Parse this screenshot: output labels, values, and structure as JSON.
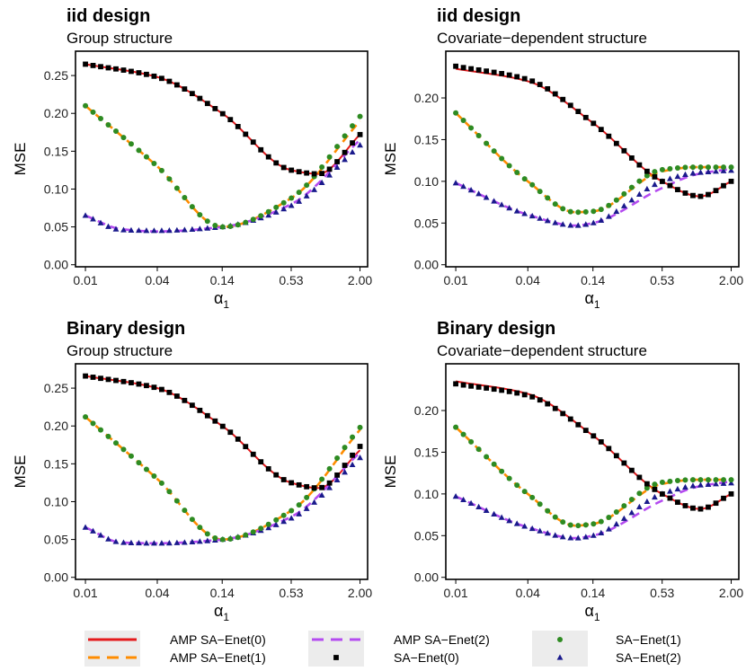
{
  "colors": {
    "amp0": "#e41a1c",
    "amp1": "#ff8c00",
    "amp2": "#b44bf0",
    "sa0": "#000000",
    "sa1": "#2e8b22",
    "sa2": "#1a1a8c"
  },
  "legend": {
    "entries": [
      {
        "key": "amp0",
        "label": "AMP SA−Enet(0)",
        "kind": "solid-line"
      },
      {
        "key": "amp1",
        "label": "AMP SA−Enet(1)",
        "kind": "dashed-line"
      },
      {
        "key": "amp2",
        "label": "AMP SA−Enet(2)",
        "kind": "dashed-line"
      },
      {
        "key": "sa0",
        "label": "SA−Enet(0)",
        "kind": "square"
      },
      {
        "key": "sa1",
        "label": "SA−Enet(1)",
        "kind": "circle"
      },
      {
        "key": "sa2",
        "label": "SA−Enet(2)",
        "kind": "triangle"
      }
    ]
  },
  "chart_data": [
    {
      "type": "line",
      "title": "iid design",
      "subtitle": "Group structure",
      "xlabel": "α",
      "xlabel_sub": "1",
      "ylabel": "MSE",
      "x_scale": "log",
      "xlim": [
        0.01,
        2.0
      ],
      "ylim": [
        0,
        0.27
      ],
      "x_ticks": [
        0.01,
        0.04,
        0.14,
        0.53,
        2.0
      ],
      "x_tick_labels": [
        "0.01",
        "0.04",
        "0.14",
        "0.53",
        "2.00"
      ],
      "y_ticks": [
        0,
        0.05,
        0.1,
        0.15,
        0.2,
        0.25
      ],
      "y_tick_labels": [
        "0.00",
        "0.05",
        "0.10",
        "0.15",
        "0.20",
        "0.25"
      ],
      "series": [
        {
          "name": "AMP SA−Enet(0)",
          "key": "amp0",
          "x": [
            0.01,
            0.04,
            0.14,
            0.53,
            0.9,
            2.0
          ],
          "y": [
            0.265,
            0.248,
            0.2,
            0.125,
            0.12,
            0.172
          ]
        },
        {
          "name": "AMP SA−Enet(1)",
          "key": "amp1",
          "x": [
            0.01,
            0.04,
            0.14,
            0.53,
            2.0
          ],
          "y": [
            0.21,
            0.13,
            0.05,
            0.088,
            0.19
          ]
        },
        {
          "name": "AMP SA−Enet(2)",
          "key": "amp2",
          "x": [
            0.01,
            0.02,
            0.04,
            0.14,
            0.53,
            2.0
          ],
          "y": [
            0.065,
            0.047,
            0.044,
            0.05,
            0.08,
            0.165
          ]
        },
        {
          "name": "SA−Enet(0)",
          "key": "sa0",
          "x": [
            0.01,
            0.04,
            0.14,
            0.53,
            0.9,
            2.0
          ],
          "y": [
            0.265,
            0.248,
            0.2,
            0.125,
            0.12,
            0.172
          ]
        },
        {
          "name": "SA−Enet(1)",
          "key": "sa1",
          "x": [
            0.01,
            0.04,
            0.14,
            0.53,
            2.0
          ],
          "y": [
            0.21,
            0.13,
            0.05,
            0.088,
            0.196
          ]
        },
        {
          "name": "SA−Enet(2)",
          "key": "sa2",
          "x": [
            0.01,
            0.02,
            0.04,
            0.14,
            0.53,
            2.0
          ],
          "y": [
            0.065,
            0.046,
            0.045,
            0.05,
            0.078,
            0.158
          ]
        }
      ]
    },
    {
      "type": "line",
      "title": "iid design",
      "subtitle": "Covariate−dependent structure",
      "xlabel": "α",
      "xlabel_sub": "1",
      "ylabel": "MSE",
      "x_scale": "log",
      "xlim": [
        0.01,
        2.0
      ],
      "ylim": [
        0,
        0.245
      ],
      "x_ticks": [
        0.01,
        0.04,
        0.14,
        0.53,
        2.0
      ],
      "x_tick_labels": [
        "0.01",
        "0.04",
        "0.14",
        "0.53",
        "2.00"
      ],
      "y_ticks": [
        0,
        0.05,
        0.1,
        0.15,
        0.2
      ],
      "y_tick_labels": [
        "0.00",
        "0.05",
        "0.10",
        "0.15",
        "0.20"
      ],
      "series": [
        {
          "name": "AMP SA−Enet(0)",
          "key": "amp0",
          "x": [
            0.01,
            0.04,
            0.14,
            0.53,
            1.1,
            2.0
          ],
          "y": [
            0.235,
            0.22,
            0.17,
            0.1,
            0.082,
            0.1
          ]
        },
        {
          "name": "AMP SA−Enet(1)",
          "key": "amp1",
          "x": [
            0.01,
            0.04,
            0.1,
            0.14,
            0.53,
            1.0,
            2.0
          ],
          "y": [
            0.182,
            0.1,
            0.063,
            0.064,
            0.112,
            0.117,
            0.117
          ]
        },
        {
          "name": "AMP SA−Enet(2)",
          "key": "amp2",
          "x": [
            0.01,
            0.04,
            0.1,
            0.14,
            0.53,
            1.0,
            2.0
          ],
          "y": [
            0.098,
            0.06,
            0.047,
            0.05,
            0.092,
            0.108,
            0.115
          ]
        },
        {
          "name": "SA−Enet(0)",
          "key": "sa0",
          "x": [
            0.01,
            0.04,
            0.14,
            0.53,
            1.1,
            2.0
          ],
          "y": [
            0.238,
            0.222,
            0.17,
            0.1,
            0.082,
            0.1
          ]
        },
        {
          "name": "SA−Enet(1)",
          "key": "sa1",
          "x": [
            0.01,
            0.04,
            0.1,
            0.14,
            0.53,
            1.0,
            2.0
          ],
          "y": [
            0.182,
            0.1,
            0.063,
            0.064,
            0.114,
            0.117,
            0.117
          ]
        },
        {
          "name": "SA−Enet(2)",
          "key": "sa2",
          "x": [
            0.01,
            0.04,
            0.1,
            0.14,
            0.53,
            1.0,
            2.0
          ],
          "y": [
            0.098,
            0.06,
            0.047,
            0.05,
            0.1,
            0.11,
            0.113
          ]
        }
      ]
    },
    {
      "type": "line",
      "title": "Binary design",
      "subtitle": "Group structure",
      "xlabel": "α",
      "xlabel_sub": "1",
      "ylabel": "MSE",
      "x_scale": "log",
      "xlim": [
        0.01,
        2.0
      ],
      "ylim": [
        0,
        0.27
      ],
      "x_ticks": [
        0.01,
        0.04,
        0.14,
        0.53,
        2.0
      ],
      "x_tick_labels": [
        "0.01",
        "0.04",
        "0.14",
        "0.53",
        "2.00"
      ],
      "y_ticks": [
        0,
        0.05,
        0.1,
        0.15,
        0.2,
        0.25
      ],
      "y_tick_labels": [
        "0.00",
        "0.05",
        "0.10",
        "0.15",
        "0.20",
        "0.25"
      ],
      "series": [
        {
          "name": "AMP SA−Enet(0)",
          "key": "amp0",
          "x": [
            0.01,
            0.04,
            0.14,
            0.53,
            0.9,
            2.0
          ],
          "y": [
            0.266,
            0.25,
            0.2,
            0.125,
            0.118,
            0.168
          ]
        },
        {
          "name": "AMP SA−Enet(1)",
          "key": "amp1",
          "x": [
            0.01,
            0.04,
            0.14,
            0.53,
            2.0
          ],
          "y": [
            0.212,
            0.13,
            0.05,
            0.088,
            0.195
          ]
        },
        {
          "name": "AMP SA−Enet(2)",
          "key": "amp2",
          "x": [
            0.01,
            0.02,
            0.04,
            0.14,
            0.53,
            2.0
          ],
          "y": [
            0.066,
            0.046,
            0.045,
            0.05,
            0.08,
            0.165
          ]
        },
        {
          "name": "SA−Enet(0)",
          "key": "sa0",
          "x": [
            0.01,
            0.04,
            0.14,
            0.53,
            0.9,
            2.0
          ],
          "y": [
            0.266,
            0.25,
            0.2,
            0.125,
            0.118,
            0.173
          ]
        },
        {
          "name": "SA−Enet(1)",
          "key": "sa1",
          "x": [
            0.01,
            0.04,
            0.14,
            0.53,
            2.0
          ],
          "y": [
            0.212,
            0.13,
            0.05,
            0.088,
            0.198
          ]
        },
        {
          "name": "SA−Enet(2)",
          "key": "sa2",
          "x": [
            0.01,
            0.02,
            0.04,
            0.14,
            0.53,
            2.0
          ],
          "y": [
            0.066,
            0.046,
            0.045,
            0.05,
            0.078,
            0.158
          ]
        }
      ]
    },
    {
      "type": "line",
      "title": "Binary design",
      "subtitle": "Covariate−dependent structure",
      "xlabel": "α",
      "xlabel_sub": "1",
      "ylabel": "MSE",
      "x_scale": "log",
      "xlim": [
        0.01,
        2.0
      ],
      "ylim": [
        0,
        0.245
      ],
      "x_ticks": [
        0.01,
        0.04,
        0.14,
        0.53,
        2.0
      ],
      "x_tick_labels": [
        "0.01",
        "0.04",
        "0.14",
        "0.53",
        "2.00"
      ],
      "y_ticks": [
        0,
        0.05,
        0.1,
        0.15,
        0.2
      ],
      "y_tick_labels": [
        "0.00",
        "0.05",
        "0.10",
        "0.15",
        "0.20"
      ],
      "series": [
        {
          "name": "AMP SA−Enet(0)",
          "key": "amp0",
          "x": [
            0.01,
            0.04,
            0.14,
            0.53,
            1.1,
            2.0
          ],
          "y": [
            0.235,
            0.22,
            0.17,
            0.1,
            0.082,
            0.1
          ]
        },
        {
          "name": "AMP SA−Enet(1)",
          "key": "amp1",
          "x": [
            0.01,
            0.04,
            0.1,
            0.14,
            0.53,
            1.0,
            2.0
          ],
          "y": [
            0.18,
            0.1,
            0.062,
            0.064,
            0.112,
            0.117,
            0.117
          ]
        },
        {
          "name": "AMP SA−Enet(2)",
          "key": "amp2",
          "x": [
            0.01,
            0.04,
            0.1,
            0.14,
            0.53,
            1.0,
            2.0
          ],
          "y": [
            0.097,
            0.06,
            0.047,
            0.05,
            0.092,
            0.108,
            0.115
          ]
        },
        {
          "name": "SA−Enet(0)",
          "key": "sa0",
          "x": [
            0.01,
            0.04,
            0.14,
            0.53,
            1.1,
            2.0
          ],
          "y": [
            0.232,
            0.218,
            0.17,
            0.1,
            0.082,
            0.1
          ]
        },
        {
          "name": "SA−Enet(1)",
          "key": "sa1",
          "x": [
            0.01,
            0.04,
            0.1,
            0.14,
            0.53,
            1.0,
            2.0
          ],
          "y": [
            0.18,
            0.1,
            0.062,
            0.064,
            0.114,
            0.117,
            0.117
          ]
        },
        {
          "name": "SA−Enet(2)",
          "key": "sa2",
          "x": [
            0.01,
            0.04,
            0.1,
            0.14,
            0.53,
            1.0,
            2.0
          ],
          "y": [
            0.097,
            0.06,
            0.047,
            0.05,
            0.1,
            0.11,
            0.113
          ]
        }
      ]
    }
  ]
}
